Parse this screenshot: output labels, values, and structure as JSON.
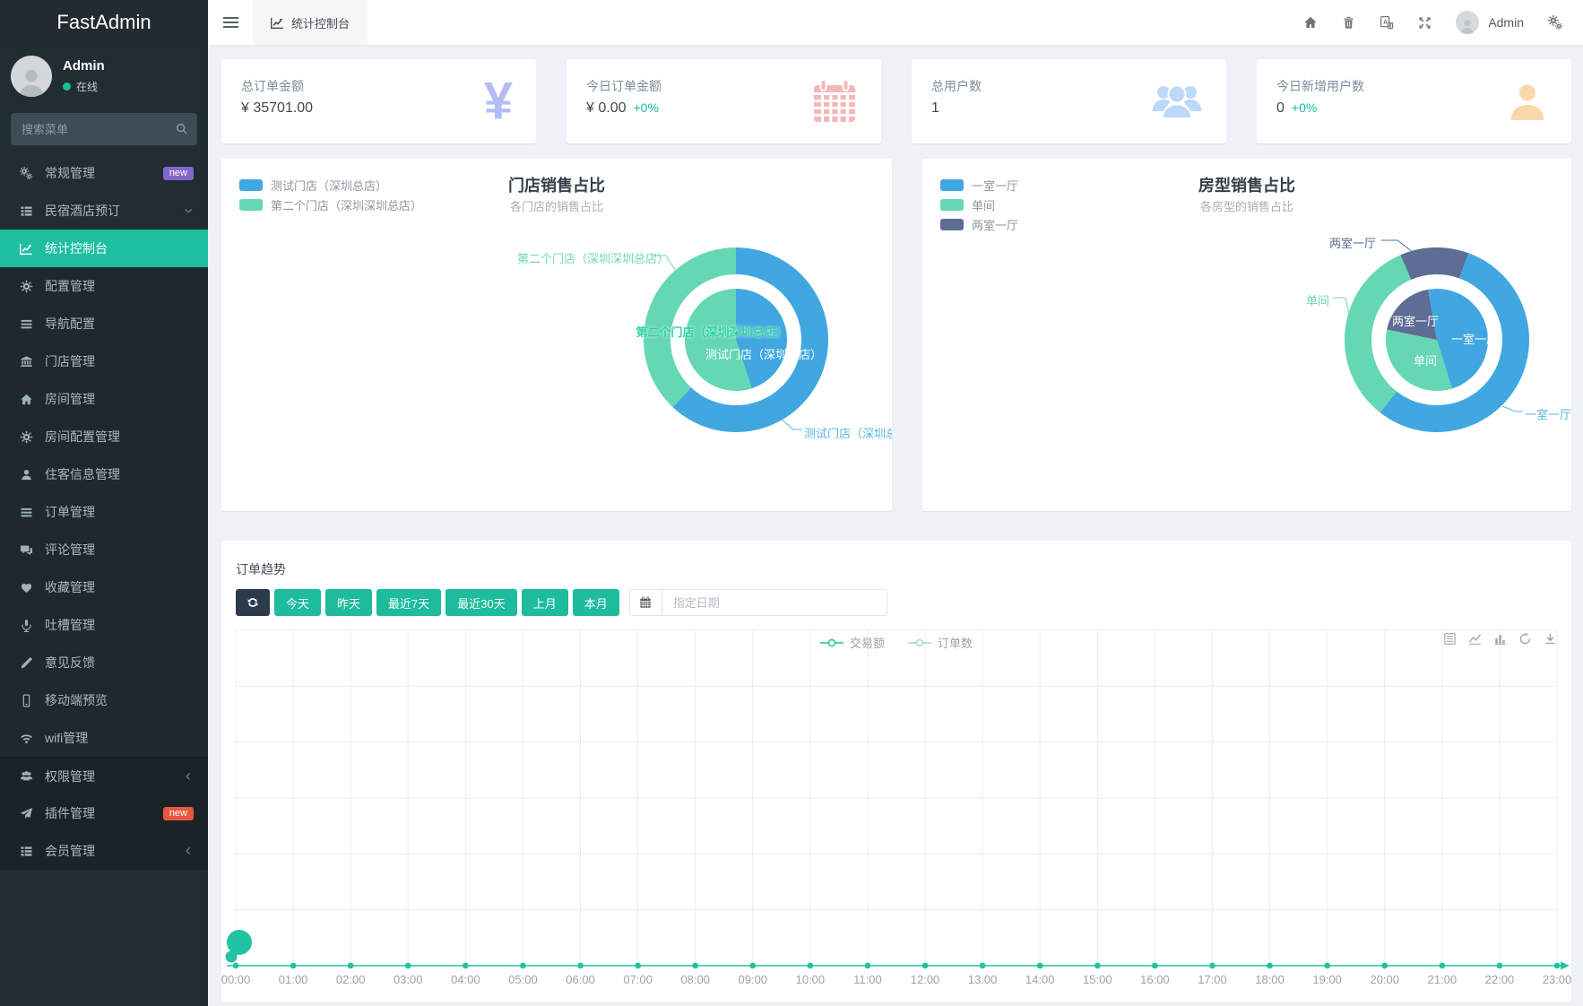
{
  "app": {
    "brand": "FastAdmin"
  },
  "palette": {
    "accent": "#1abc9c",
    "blue": "#41a7e0",
    "green": "#66d7b3",
    "slate": "#5d6d94",
    "badge_purple": "#8168c8",
    "badge_red": "#e9573f",
    "sidebar_bg": "#222d32"
  },
  "sidebar": {
    "user": {
      "name": "Admin",
      "status": "在线"
    },
    "search_placeholder": "搜索菜单",
    "items": [
      {
        "label": "常规管理",
        "icon": "cogs-icon",
        "badge": "new",
        "badge_color": "purple"
      },
      {
        "label": "民宿酒店预订",
        "icon": "th-list-icon",
        "chevron": "down"
      },
      {
        "label": "统计控制台",
        "icon": "line-chart-icon",
        "state": "active",
        "region": "sub"
      },
      {
        "label": "配置管理",
        "icon": "cog-icon",
        "region": "sub"
      },
      {
        "label": "导航配置",
        "icon": "bars-icon",
        "region": "sub"
      },
      {
        "label": "门店管理",
        "icon": "bank-icon",
        "region": "sub"
      },
      {
        "label": "房间管理",
        "icon": "home-icon",
        "region": "sub"
      },
      {
        "label": "房间配置管理",
        "icon": "cog-icon",
        "region": "sub"
      },
      {
        "label": "住客信息管理",
        "icon": "user-icon",
        "region": "sub"
      },
      {
        "label": "订单管理",
        "icon": "bars-icon",
        "region": "sub"
      },
      {
        "label": "评论管理",
        "icon": "comments-icon",
        "region": "sub"
      },
      {
        "label": "收藏管理",
        "icon": "heart-icon",
        "region": "sub"
      },
      {
        "label": "吐槽管理",
        "icon": "microphone-icon",
        "region": "sub"
      },
      {
        "label": "意见反馈",
        "icon": "pencil-icon",
        "region": "sub"
      },
      {
        "label": "移动端预览",
        "icon": "mobile-icon",
        "region": "sub"
      },
      {
        "label": "wifi管理",
        "icon": "wifi-icon",
        "region": "sub"
      },
      {
        "label": "权限管理",
        "icon": "users-icon",
        "chevron": "left",
        "region": "bottom",
        "first": true
      },
      {
        "label": "插件管理",
        "icon": "paper-plane-icon",
        "badge": "new",
        "badge_color": "red",
        "region": "bottom"
      },
      {
        "label": "会员管理",
        "icon": "th-list-icon",
        "chevron": "left",
        "region": "bottom"
      }
    ]
  },
  "topbar": {
    "tab": "统计控制台",
    "username": "Admin"
  },
  "stats": {
    "cards": [
      {
        "label": "总订单金额",
        "value": "¥ 35701.00",
        "icon": "yen-icon"
      },
      {
        "label": "今日订单金额",
        "value": "¥ 0.00",
        "delta": "+0%",
        "icon": "calendar-icon"
      },
      {
        "label": "总用户数",
        "value": "1",
        "icon": "users-group-icon"
      },
      {
        "label": "今日新增用户数",
        "value": "0",
        "delta": "+0%",
        "icon": "user-add-icon"
      }
    ]
  },
  "trend": {
    "buttons": [
      "今天",
      "昨天",
      "最近7天",
      "最近30天",
      "上月",
      "本月"
    ],
    "date_placeholder": "指定日期"
  },
  "chart_data": [
    {
      "type": "pie",
      "title": "门店销售占比",
      "subtitle": "各门店的销售占比",
      "legend_position": "top-left",
      "legend": [
        "测试门店（深圳总店）",
        "第二个门店（深圳深圳总店）"
      ],
      "values_are": "percent_estimate",
      "colors": {
        "测试门店（深圳总店）": "#41a7e0",
        "第二个门店（深圳深圳总店）": "#66d7b3"
      },
      "series": [
        {
          "name": "inner",
          "slices": [
            {
              "label": "测试门店（深圳总店）",
              "value": 45
            },
            {
              "label": "第二个门店（深圳深圳总店）",
              "value": 55
            }
          ]
        },
        {
          "name": "outer",
          "slices": [
            {
              "label": "测试门店（深圳总店）",
              "value": 62
            },
            {
              "label": "第二个门店（深圳深圳总店）",
              "value": 38
            }
          ]
        }
      ]
    },
    {
      "type": "pie",
      "title": "房型销售占比",
      "subtitle": "各房型的销售占比",
      "legend_position": "top-left",
      "legend": [
        "一室一厅",
        "单间",
        "两室一厅"
      ],
      "values_are": "percent_estimate",
      "colors": {
        "一室一厅": "#41a7e0",
        "单间": "#66d7b3",
        "两室一厅": "#5d6d94"
      },
      "series": [
        {
          "name": "inner",
          "slices": [
            {
              "label": "一室一厅",
              "value": 48
            },
            {
              "label": "单间",
              "value": 33
            },
            {
              "label": "两室一厅",
              "value": 19
            }
          ]
        },
        {
          "name": "outer",
          "slices": [
            {
              "label": "一室一厅",
              "value": 55
            },
            {
              "label": "单间",
              "value": 33
            },
            {
              "label": "两室一厅",
              "value": 12
            }
          ]
        }
      ]
    },
    {
      "type": "line",
      "title": "订单趋势",
      "legend": [
        "交易额",
        "订单数"
      ],
      "legend_position": "top-center",
      "grid": true,
      "ylim": [
        0,
        1
      ],
      "colors": {
        "交易额": "#22c3a0",
        "订单数": "#9edcc9"
      },
      "x": [
        "00:00",
        "01:00",
        "02:00",
        "03:00",
        "04:00",
        "05:00",
        "06:00",
        "07:00",
        "08:00",
        "09:00",
        "10:00",
        "11:00",
        "12:00",
        "13:00",
        "14:00",
        "15:00",
        "16:00",
        "17:00",
        "18:00",
        "19:00",
        "20:00",
        "21:00",
        "22:00",
        "23:00"
      ],
      "series": [
        {
          "name": "交易额",
          "values": [
            0,
            0,
            0,
            0,
            0,
            0,
            0,
            0,
            0,
            0,
            0,
            0,
            0,
            0,
            0,
            0,
            0,
            0,
            0,
            0,
            0,
            0,
            0,
            0
          ]
        },
        {
          "name": "订单数",
          "values": [
            0,
            0,
            0,
            0,
            0,
            0,
            0,
            0,
            0,
            0,
            0,
            0,
            0,
            0,
            0,
            0,
            0,
            0,
            0,
            0,
            0,
            0,
            0,
            0
          ]
        }
      ],
      "highlight_index": 0
    }
  ]
}
